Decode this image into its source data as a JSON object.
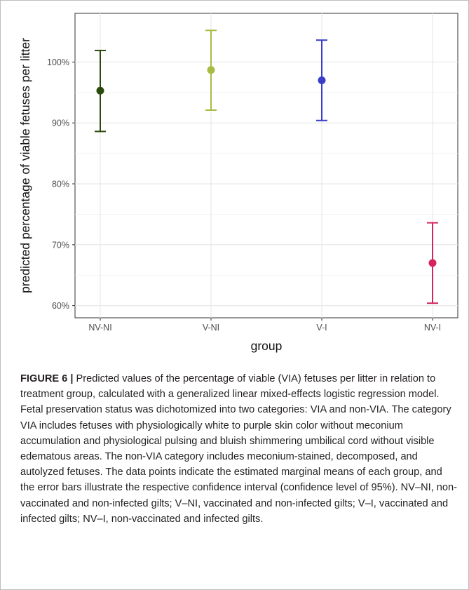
{
  "chart_data": {
    "type": "scatter",
    "title": "",
    "xlabel": "group",
    "ylabel": "predicted percentage of viable fetuses per litter",
    "categories": [
      "NV-NI",
      "V-NI",
      "V-I",
      "NV-I"
    ],
    "ylim": [
      58,
      108
    ],
    "yticks": [
      60,
      70,
      80,
      90,
      100
    ],
    "ytick_labels": [
      "60%",
      "70%",
      "80%",
      "90%",
      "100%"
    ],
    "grid": true,
    "legend": "none",
    "points": [
      {
        "group": "NV-NI",
        "estimate": 95.3,
        "lower": 88.6,
        "upper": 101.9,
        "color": "#2a4a0c"
      },
      {
        "group": "V-NI",
        "estimate": 98.7,
        "lower": 92.1,
        "upper": 105.2,
        "color": "#aabb44"
      },
      {
        "group": "V-I",
        "estimate": 97.0,
        "lower": 90.4,
        "upper": 103.6,
        "color": "#3a3dc8"
      },
      {
        "group": "NV-I",
        "estimate": 67.0,
        "lower": 60.4,
        "upper": 73.6,
        "color": "#d6245c"
      }
    ]
  },
  "caption": {
    "label": "FIGURE 6 |",
    "text": "Predicted values of the percentage of viable (VIA) fetuses per litter in relation to treatment group, calculated with a generalized linear mixed-effects logistic regression model. Fetal preservation status was dichotomized into two categories: VIA and non-VIA. The category VIA includes fetuses with physiologically white to purple skin color without meconium accumulation and physiological pulsing and bluish shimmering umbilical cord without visible edematous areas. The non-VIA category includes meconium-stained, decomposed, and autolyzed fetuses. The data points indicate the estimated marginal means of each group, and the error bars illustrate the respective confidence interval (confidence level of 95%). NV–NI, non-vaccinated and non-infected gilts; V–NI, vaccinated and non-infected gilts; V–I, vaccinated and infected gilts; NV–I, non-vaccinated and infected gilts."
  }
}
